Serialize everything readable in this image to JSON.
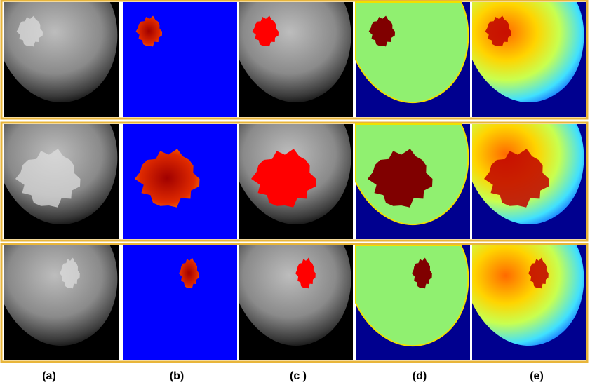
{
  "panel_labels": [
    "(a)",
    "(b)",
    "(c )",
    "(d)",
    "(e)"
  ]
}
